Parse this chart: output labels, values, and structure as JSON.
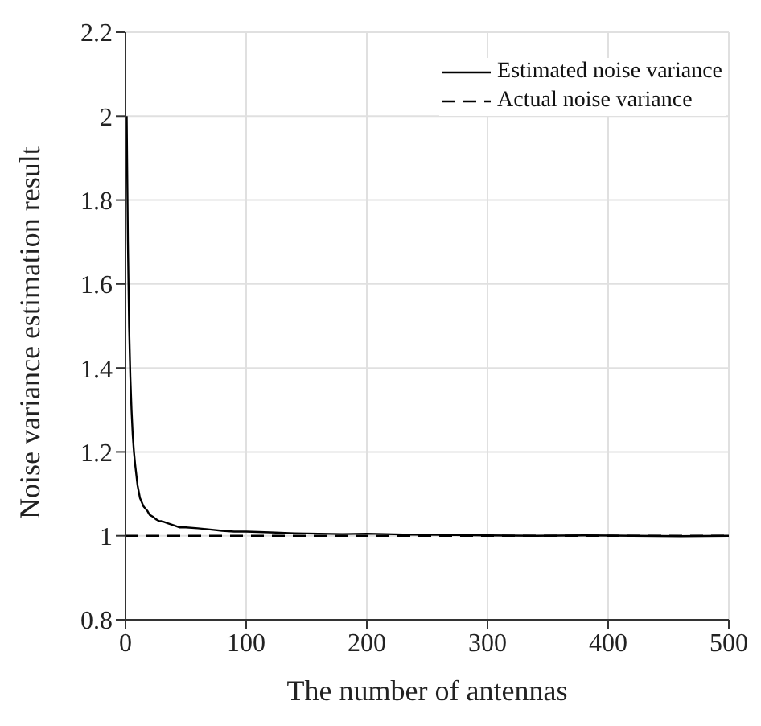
{
  "chart_data": {
    "type": "line",
    "xlabel": "The number of antennas",
    "ylabel": "Noise variance estimation result",
    "xlim": [
      0,
      500
    ],
    "xticks": [
      0,
      100,
      200,
      300,
      400,
      500
    ],
    "ylim": [
      0.8,
      2.2
    ],
    "yticks": [
      0.8,
      1,
      1.2,
      1.4,
      1.6,
      1.8,
      2,
      2.2
    ],
    "grid": true,
    "legend": "top right",
    "marker": "none",
    "series": [
      {
        "name": "Estimated noise variance",
        "color": "#000000",
        "line_style": "solid",
        "x": [
          1,
          2,
          3,
          4,
          5,
          6,
          7,
          8,
          10,
          12,
          15,
          18,
          20,
          23,
          25,
          28,
          30,
          35,
          40,
          45,
          50,
          60,
          70,
          80,
          90,
          100,
          120,
          140,
          160,
          180,
          200,
          230,
          260,
          300,
          340,
          380,
          420,
          460,
          500
        ],
        "values": [
          2.0,
          1.7,
          1.5,
          1.38,
          1.3,
          1.24,
          1.2,
          1.17,
          1.12,
          1.09,
          1.07,
          1.06,
          1.05,
          1.045,
          1.04,
          1.035,
          1.035,
          1.03,
          1.025,
          1.02,
          1.02,
          1.018,
          1.015,
          1.012,
          1.01,
          1.01,
          1.008,
          1.006,
          1.005,
          1.004,
          1.005,
          1.003,
          1.002,
          1.001,
          1.0,
          1.001,
          1.0,
          0.999,
          1.0
        ]
      },
      {
        "name": "Actual noise variance",
        "color": "#000000",
        "line_style": "dashed",
        "x": [
          0,
          500
        ],
        "values": [
          1,
          1
        ]
      }
    ]
  }
}
